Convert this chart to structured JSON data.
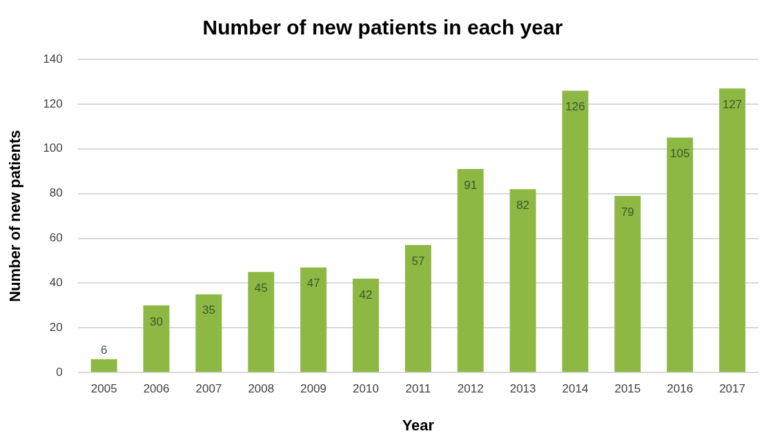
{
  "chart_data": {
    "type": "bar",
    "title": "Number of new patients in each year",
    "xlabel": "Year",
    "ylabel": "Number of new patients",
    "categories": [
      "2005",
      "2006",
      "2007",
      "2008",
      "2009",
      "2010",
      "2011",
      "2012",
      "2013",
      "2014",
      "2015",
      "2016",
      "2017"
    ],
    "values": [
      6,
      30,
      35,
      45,
      47,
      42,
      57,
      91,
      82,
      126,
      79,
      105,
      127
    ],
    "color": "#8cb843",
    "ylim": [
      0,
      140
    ],
    "yticks": [
      0,
      20,
      40,
      60,
      80,
      100,
      120,
      140
    ],
    "grid": "y",
    "legend": false,
    "data_labels": true
  }
}
